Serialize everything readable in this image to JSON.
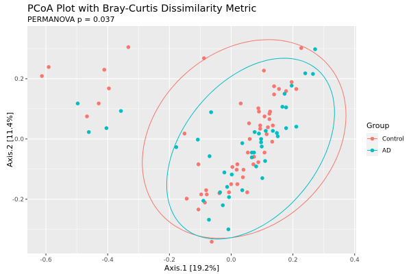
{
  "chart_data": {
    "type": "scatter",
    "title": "PCoA Plot with Bray-Curtis Dissimilarity Metric",
    "subtitle": "PERMANOVA p = 0.037",
    "xlabel": "Axis.1   [19.2%]",
    "ylabel": "Axis.2   [11.4%]",
    "xlim": [
      -0.66,
      0.405
    ],
    "ylim": [
      -0.38,
      0.375
    ],
    "x_ticks": [
      -0.6,
      -0.4,
      -0.2,
      0.0,
      0.2,
      0.4
    ],
    "x_tick_labels": [
      "-0.6",
      "-0.4",
      "-0.2",
      "0.0",
      "0.2",
      "0.4"
    ],
    "y_ticks": [
      -0.2,
      0.0,
      0.2
    ],
    "y_tick_labels": [
      "-0.2",
      "0.0",
      "0.2"
    ],
    "grid": true,
    "legend": {
      "title": "Group",
      "placement": "right",
      "entries": [
        "Control",
        "AD"
      ]
    },
    "series": [
      {
        "name": "Control",
        "color": "#F8766D",
        "ellipse": {
          "center": [
            0.042,
            0.0
          ],
          "semi_major": 0.367,
          "semi_minor": 0.288,
          "angle_deg": 45
        },
        "points": [
          [
            -0.333,
            0.305
          ],
          [
            -0.591,
            0.239
          ],
          [
            -0.613,
            0.209
          ],
          [
            -0.411,
            0.23
          ],
          [
            -0.396,
            0.168
          ],
          [
            -0.429,
            0.118
          ],
          [
            -0.467,
            0.075
          ],
          [
            -0.088,
            0.268
          ],
          [
            -0.151,
            0.018
          ],
          [
            0.031,
            0.118
          ],
          [
            0.227,
            0.302
          ],
          [
            0.106,
            0.227
          ],
          [
            0.196,
            0.189
          ],
          [
            0.139,
            0.175
          ],
          [
            0.155,
            0.166
          ],
          [
            0.178,
            0.159
          ],
          [
            0.211,
            0.166
          ],
          [
            0.139,
            0.148
          ],
          [
            0.088,
            0.102
          ],
          [
            0.09,
            0.091
          ],
          [
            0.126,
            0.091
          ],
          [
            0.124,
            0.084
          ],
          [
            0.108,
            0.075
          ],
          [
            0.124,
            0.066
          ],
          [
            0.058,
            0.052
          ],
          [
            0.094,
            0.045
          ],
          [
            0.094,
            0.034
          ],
          [
            0.119,
            0.039
          ],
          [
            0.135,
            0.045
          ],
          [
            0.115,
            0.016
          ],
          [
            0.06,
            0.0
          ],
          [
            0.133,
            -0.009
          ],
          [
            0.054,
            -0.045
          ],
          [
            0.108,
            -0.045
          ],
          [
            0.088,
            -0.077
          ],
          [
            0.02,
            -0.084
          ],
          [
            0.018,
            -0.102
          ],
          [
            0.04,
            -0.102
          ],
          [
            0.072,
            -0.084
          ],
          [
            0.038,
            -0.127
          ],
          [
            0.074,
            -0.059
          ],
          [
            -0.106,
            -0.084
          ],
          [
            0.004,
            -0.093
          ],
          [
            0.02,
            -0.15
          ],
          [
            -0.079,
            -0.184
          ],
          [
            -0.081,
            -0.17
          ],
          [
            -0.144,
            -0.198
          ],
          [
            0.052,
            -0.177
          ],
          [
            -0.097,
            -0.184
          ],
          [
            -0.085,
            -0.211
          ],
          [
            -0.106,
            -0.234
          ],
          [
            -0.038,
            -0.18
          ],
          [
            0.0,
            -0.15
          ],
          [
            -0.063,
            -0.341
          ],
          [
            -0.007,
            -0.177
          ]
        ]
      },
      {
        "name": "AD",
        "color": "#00BFC4",
        "ellipse": {
          "center": [
            0.063,
            -0.032
          ],
          "semi_major": 0.34,
          "semi_minor": 0.22,
          "angle_deg": 52
        },
        "points": [
          [
            -0.497,
            0.118
          ],
          [
            -0.357,
            0.093
          ],
          [
            -0.404,
            0.036
          ],
          [
            -0.461,
            0.023
          ],
          [
            -0.065,
            0.089
          ],
          [
            0.272,
            0.298
          ],
          [
            0.24,
            0.218
          ],
          [
            0.265,
            0.216
          ],
          [
            0.196,
            0.177
          ],
          [
            0.173,
            0.15
          ],
          [
            0.166,
            0.107
          ],
          [
            0.178,
            0.105
          ],
          [
            0.178,
            0.036
          ],
          [
            0.211,
            0.041
          ],
          [
            0.076,
            0.023
          ],
          [
            0.09,
            0.018
          ],
          [
            0.112,
            0.027
          ],
          [
            0.135,
            0.027
          ],
          [
            0.148,
            0.02
          ],
          [
            0.151,
            0.009
          ],
          [
            0.036,
            -0.014
          ],
          [
            0.097,
            0.0
          ],
          [
            0.097,
            -0.011
          ],
          [
            0.099,
            -0.025
          ],
          [
            0.067,
            -0.045
          ],
          [
            0.074,
            -0.045
          ],
          [
            0.067,
            -0.061
          ],
          [
            0.11,
            -0.073
          ],
          [
            0.081,
            -0.091
          ],
          [
            0.101,
            -0.13
          ],
          [
            -0.108,
            -0.002
          ],
          [
            -0.178,
            -0.027
          ],
          [
            -0.07,
            -0.057
          ],
          [
            -0.022,
            -0.111
          ],
          [
            0.002,
            -0.118
          ],
          [
            -0.013,
            -0.159
          ],
          [
            0.036,
            -0.17
          ],
          [
            -0.036,
            -0.177
          ],
          [
            -0.007,
            -0.193
          ],
          [
            -0.09,
            -0.205
          ],
          [
            -0.027,
            -0.22
          ],
          [
            -0.072,
            -0.268
          ],
          [
            -0.009,
            -0.3
          ]
        ]
      }
    ]
  }
}
